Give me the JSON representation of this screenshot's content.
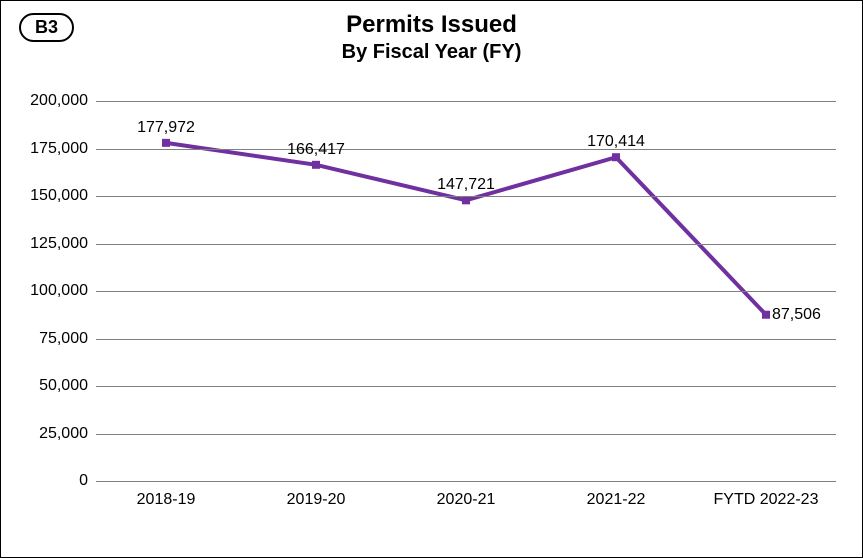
{
  "chart": {
    "type": "line",
    "badge": "B3",
    "title": "Permits Issued",
    "subtitle": "By Fiscal Year (FY)",
    "title_fontsize": 24,
    "subtitle_fontsize": 20,
    "badge_fontsize": 18,
    "background_color": "#ffffff",
    "border_color": "#000000",
    "plot": {
      "ylim": [
        0,
        200000
      ],
      "ytick_step": 25000,
      "yticks": [
        0,
        25000,
        50000,
        75000,
        100000,
        125000,
        150000,
        175000,
        200000
      ],
      "ytick_labels": [
        "0",
        "25,000",
        "50,000",
        "75,000",
        "100,000",
        "125,000",
        "150,000",
        "175,000",
        "200,000"
      ],
      "grid_color": "#808080",
      "axis_label_fontsize": 16,
      "axis_label_color": "#000000"
    },
    "series": {
      "line_color": "#7030a0",
      "line_width": 4,
      "marker_color": "#7030a0",
      "marker_size": 8,
      "marker_shape": "square",
      "categories": [
        "2018-19",
        "2019-20",
        "2020-21",
        "2021-22",
        "FYTD 2022-23"
      ],
      "values": [
        177972,
        166417,
        147721,
        170414,
        87506
      ],
      "value_labels": [
        "177,972",
        "166,417",
        "147,721",
        "170,414",
        "87,506"
      ],
      "data_label_fontsize": 16,
      "data_label_color": "#000000",
      "label_positions": [
        "above",
        "above",
        "above",
        "above",
        "right"
      ]
    }
  }
}
